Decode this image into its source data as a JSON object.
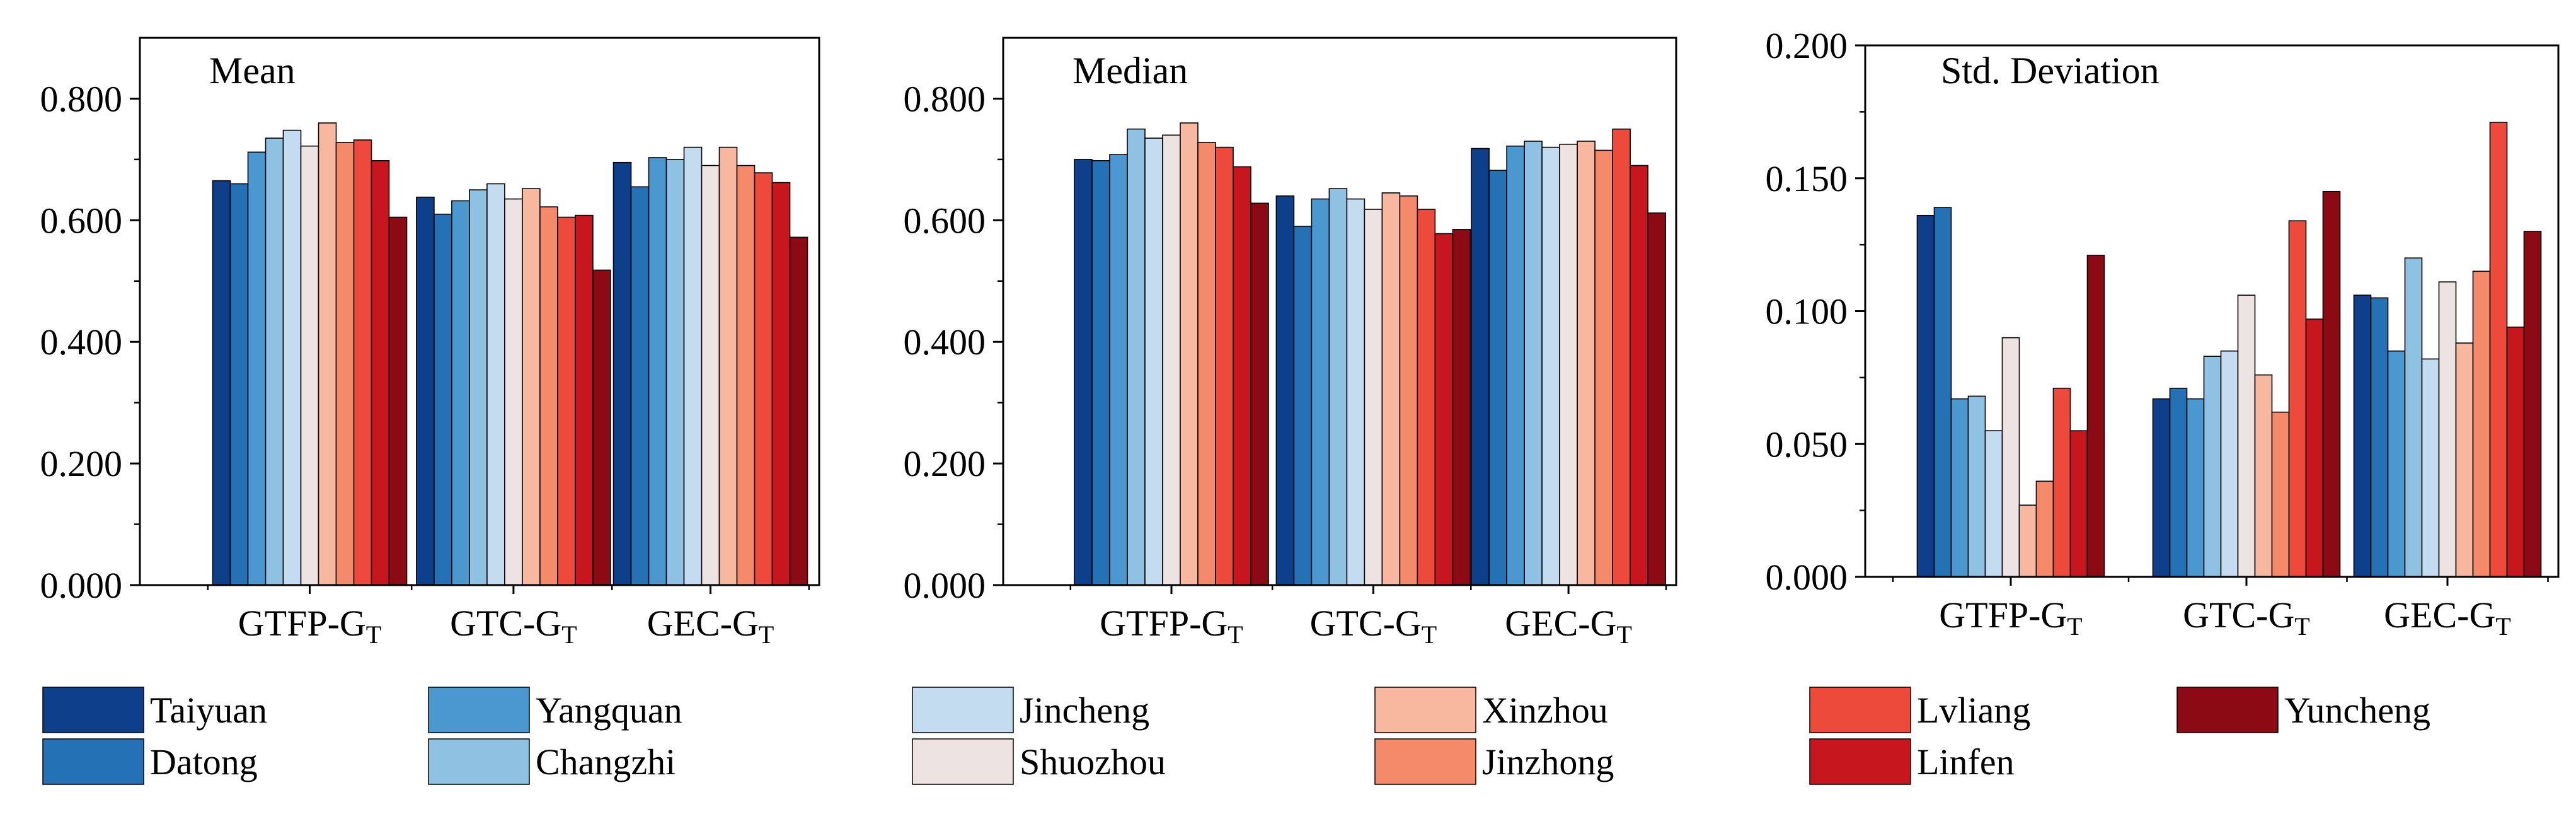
{
  "charts": [
    {
      "type": "bar",
      "title": "Mean",
      "groups": [
        "GTFP-G",
        "GTC-G",
        "GEC-G"
      ],
      "group_subscript": "T",
      "ylim": [
        0,
        0.9
      ],
      "yticks": [
        "0.000",
        "0.200",
        "0.400",
        "0.600",
        "0.800"
      ],
      "ytick_values": [
        0,
        0.2,
        0.4,
        0.6,
        0.8
      ],
      "series_values": [
        [
          0.665,
          0.66,
          0.712,
          0.735,
          0.748,
          0.722,
          0.76,
          0.728,
          0.732,
          0.698,
          0.605
        ],
        [
          0.638,
          0.61,
          0.632,
          0.65,
          0.66,
          0.635,
          0.652,
          0.622,
          0.605,
          0.608,
          0.518
        ],
        [
          0.695,
          0.655,
          0.703,
          0.7,
          0.72,
          0.69,
          0.72,
          0.69,
          0.678,
          0.662,
          0.572
        ]
      ]
    },
    {
      "type": "bar",
      "title": "Median",
      "groups": [
        "GTFP-G",
        "GTC-G",
        "GEC-G"
      ],
      "group_subscript": "T",
      "ylim": [
        0,
        0.9
      ],
      "yticks": [
        "0.000",
        "0.200",
        "0.400",
        "0.600",
        "0.800"
      ],
      "ytick_values": [
        0,
        0.2,
        0.4,
        0.6,
        0.8
      ],
      "series_values": [
        [
          0.7,
          0.698,
          0.708,
          0.75,
          0.735,
          0.74,
          0.76,
          0.728,
          0.72,
          0.688,
          0.628
        ],
        [
          0.64,
          0.59,
          0.635,
          0.652,
          0.635,
          0.618,
          0.645,
          0.64,
          0.618,
          0.578,
          0.585
        ],
        [
          0.718,
          0.682,
          0.722,
          0.73,
          0.72,
          0.725,
          0.73,
          0.715,
          0.75,
          0.69,
          0.612
        ]
      ]
    },
    {
      "type": "bar",
      "title": "Std. Deviation",
      "groups": [
        "GTFP-G",
        "GTC-G",
        "GEC-G"
      ],
      "group_subscript": "T",
      "ylim": [
        0,
        0.2
      ],
      "yticks": [
        "0.000",
        "0.050",
        "0.100",
        "0.150",
        "0.200"
      ],
      "ytick_values": [
        0,
        0.05,
        0.1,
        0.15,
        0.2
      ],
      "series_values": [
        [
          0.136,
          0.139,
          0.067,
          0.068,
          0.055,
          0.09,
          0.027,
          0.036,
          0.071,
          0.055,
          0.121
        ],
        [
          0.067,
          0.071,
          0.067,
          0.083,
          0.085,
          0.106,
          0.076,
          0.062,
          0.134,
          0.097,
          0.145
        ],
        [
          0.106,
          0.105,
          0.085,
          0.12,
          0.082,
          0.111,
          0.088,
          0.115,
          0.171,
          0.094,
          0.13
        ]
      ]
    }
  ],
  "series": [
    {
      "name": "Taiyuan",
      "color": "#0d3f8a"
    },
    {
      "name": "Datong",
      "color": "#2471b5"
    },
    {
      "name": "Yangquan",
      "color": "#4a98cf"
    },
    {
      "name": "Changzhi",
      "color": "#8fc1e2"
    },
    {
      "name": "Jincheng",
      "color": "#c4dcf0"
    },
    {
      "name": "Shuozhou",
      "color": "#ede3e2"
    },
    {
      "name": "Xinzhou",
      "color": "#f7b89f"
    },
    {
      "name": "Jinzhong",
      "color": "#f48a6a"
    },
    {
      "name": "Lvliang",
      "color": "#ee4a3b"
    },
    {
      "name": "Linfen",
      "color": "#c8161f"
    },
    {
      "name": "Yuncheng",
      "color": "#8c0a14"
    }
  ]
}
